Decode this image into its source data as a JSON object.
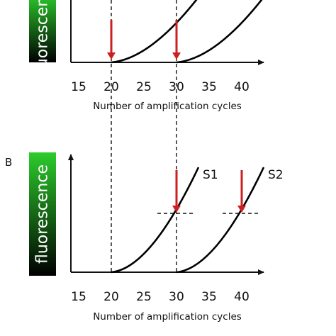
{
  "chart_data": [
    {
      "type": "line",
      "panel_label": "",
      "ylabel": "fluorescence",
      "xlabel": "Number of amplification cycles",
      "x_ticks": [
        15,
        20,
        25,
        30,
        35,
        40
      ],
      "xlim": [
        13,
        44
      ],
      "curve_color": "#000000",
      "series": [
        {
          "name": "",
          "start_cycle": 20
        },
        {
          "name": "",
          "start_cycle": 30
        }
      ],
      "arrows": [
        {
          "x": 20,
          "color": "#cc1f1f"
        },
        {
          "x": 30,
          "color": "#cc1f1f"
        }
      ],
      "threshold_lines": [],
      "cropped_top": true
    },
    {
      "type": "line",
      "panel_label": "B",
      "ylabel": "fluorescence",
      "xlabel": "Number of amplification cycles",
      "x_ticks": [
        15,
        20,
        25,
        30,
        35,
        40
      ],
      "xlim": [
        13,
        44
      ],
      "curve_color": "#000000",
      "series": [
        {
          "name": "S1",
          "start_cycle": 20
        },
        {
          "name": "S2",
          "start_cycle": 30
        }
      ],
      "arrows": [
        {
          "x": 30,
          "color": "#cc1f1f"
        },
        {
          "x": 40,
          "color": "#cc1f1f"
        }
      ],
      "threshold_lines": [
        {
          "x": 30
        },
        {
          "x": 40
        }
      ],
      "cropped_top": false
    }
  ],
  "guide_lines_x": [
    20,
    30
  ],
  "fluorescence_gradient": [
    "#000000",
    "#2ccc2c"
  ]
}
